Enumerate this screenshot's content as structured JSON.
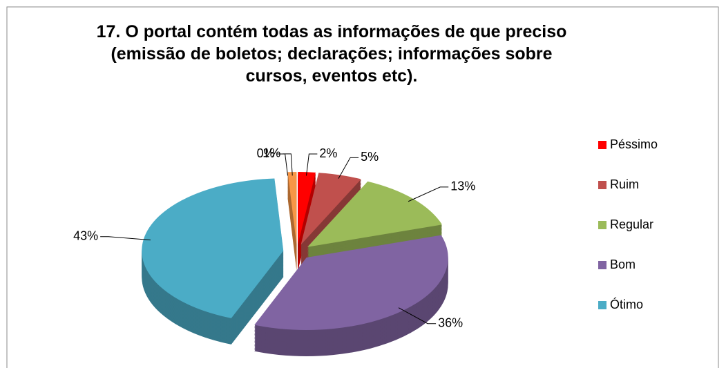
{
  "chart_data": {
    "type": "pie",
    "title": "17. O portal contém todas as informações de que preciso (emissão de boletos; declarações; informações sobre cursos, eventos etc).",
    "categories": [
      "Péssimo",
      "Ruim",
      "Regular",
      "Bom",
      "Ótimo",
      null,
      null
    ],
    "values": [
      2,
      5,
      13,
      36,
      43,
      0,
      1
    ],
    "value_labels": [
      "2%",
      "5%",
      "13%",
      "36%",
      "43%",
      "0%",
      "1%"
    ],
    "colors": [
      "#ff0000",
      "#c0504d",
      "#9bbb59",
      "#8064a2",
      "#4bacc6",
      "#2c4d75",
      "#f79646"
    ],
    "legend": "right"
  }
}
